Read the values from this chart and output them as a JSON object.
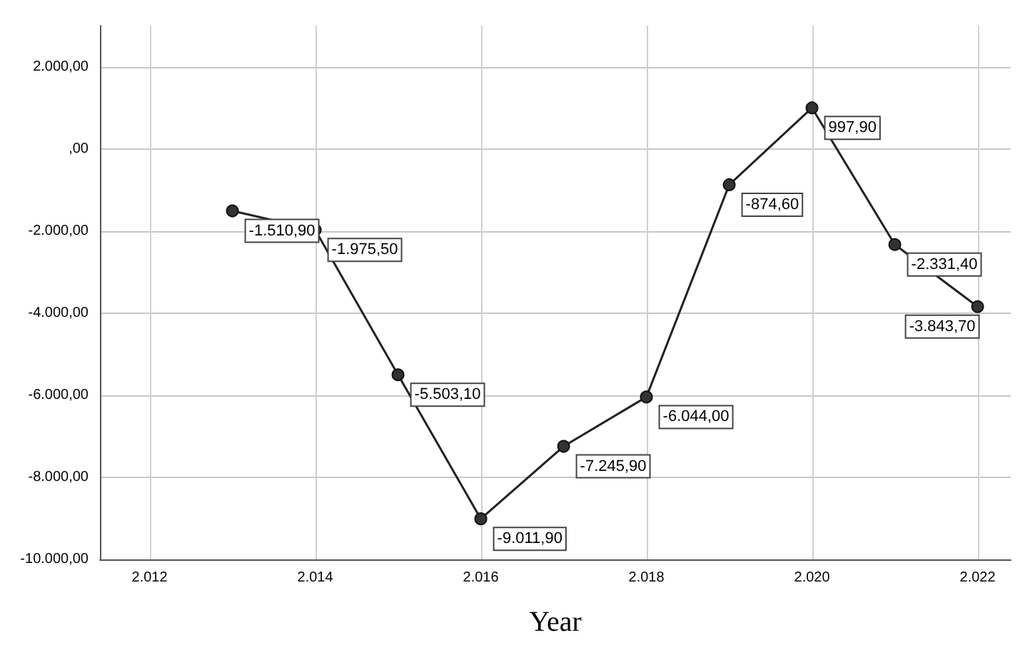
{
  "chart_data": {
    "type": "line",
    "xlabel": "Year",
    "x": [
      2013,
      2014,
      2015,
      2016,
      2017,
      2018,
      2019,
      2020,
      2021,
      2022
    ],
    "series": [
      {
        "color": "#333333",
        "values": [
          -1510.9,
          -1975.5,
          -5503.1,
          -9011.9,
          -7245.9,
          -6044.0,
          -874.6,
          997.9,
          -2331.4,
          -3843.7
        ],
        "value_labels": [
          "-1.510,90",
          "-1.975,50",
          "-5.503,10",
          "-9.011,90",
          "-7.245,90",
          "-6.044,00",
          "-874,60",
          "997,90",
          "-2.331,40",
          "-3.843,70"
        ]
      }
    ],
    "xlim": [
      2011.4,
      2022.4
    ],
    "xticks": [
      {
        "value": 2012,
        "label": "2.012"
      },
      {
        "value": 2014,
        "label": "2.014"
      },
      {
        "value": 2016,
        "label": "2.016"
      },
      {
        "value": 2018,
        "label": "2.018"
      },
      {
        "value": 2020,
        "label": "2.020"
      },
      {
        "value": 2022,
        "label": "2.022"
      }
    ],
    "ylim": [
      -10000,
      3000
    ],
    "yticks": [
      {
        "value": -10000,
        "label": "-10.000,00"
      },
      {
        "value": -8000,
        "label": "-8.000,00"
      },
      {
        "value": -6000,
        "label": "-6.000,00"
      },
      {
        "value": -4000,
        "label": "-4.000,00"
      },
      {
        "value": -2000,
        "label": "-2.000,00"
      },
      {
        "value": 0,
        "label": ",00"
      },
      {
        "value": 2000,
        "label": "2.000,00"
      }
    ],
    "grid": true,
    "marker": "circle",
    "line_style": "solid"
  }
}
